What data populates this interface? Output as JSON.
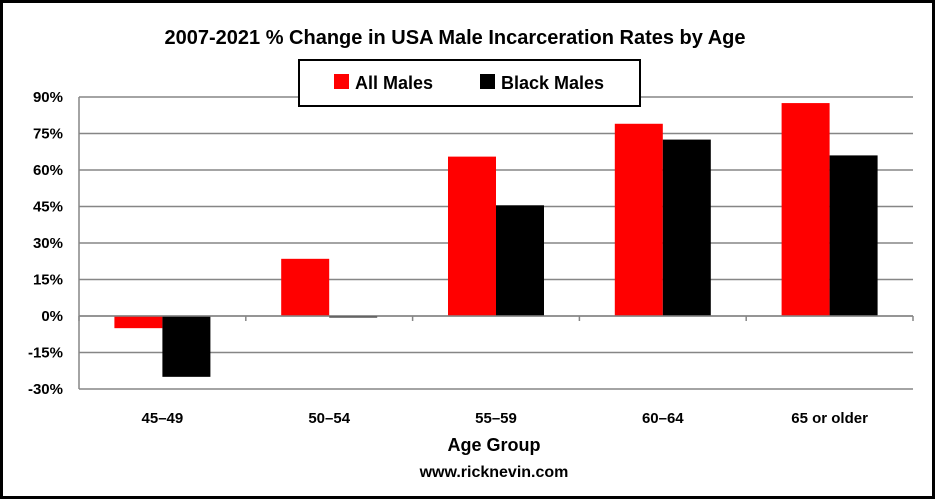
{
  "chart_data": {
    "type": "bar",
    "title": "2007-2021 % Change in USA Male Incarceration Rates by Age",
    "xlabel": "Age Group",
    "ylabel": "",
    "credit": "www.ricknevin.com",
    "categories": [
      "45–49",
      "50–54",
      "55–59",
      "60–64",
      "65 or older"
    ],
    "series": [
      {
        "name": "All Males",
        "color": "#ff0000",
        "values": [
          -5,
          23.5,
          65.5,
          79,
          87.5
        ]
      },
      {
        "name": "Black Males",
        "color": "#000000",
        "values": [
          -25,
          -0.5,
          45.5,
          72.5,
          66
        ]
      }
    ],
    "ylim": [
      -30,
      90
    ],
    "yticks": [
      90,
      75,
      60,
      45,
      30,
      15,
      0,
      -15,
      -30
    ],
    "ytick_labels": [
      "90%",
      "75%",
      "60%",
      "45%",
      "30%",
      "15%",
      "0%",
      "-15%",
      "-30%"
    ],
    "grid": true,
    "legend_position": "top-center"
  }
}
